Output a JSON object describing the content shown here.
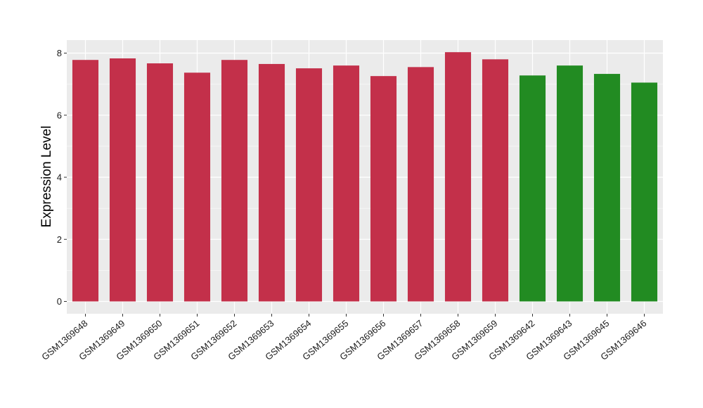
{
  "chart_data": {
    "type": "bar",
    "title": "",
    "xlabel": "",
    "ylabel": "Expression Level",
    "ylim": [
      0,
      8.4
    ],
    "yticks": [
      0,
      2,
      4,
      6,
      8
    ],
    "grid": true,
    "legend": "none",
    "categories": [
      "GSM1369648",
      "GSM1369649",
      "GSM1369650",
      "GSM1369651",
      "GSM1369652",
      "GSM1369653",
      "GSM1369654",
      "GSM1369655",
      "GSM1369656",
      "GSM1369657",
      "GSM1369658",
      "GSM1369659",
      "GSM1369642",
      "GSM1369643",
      "GSM1369645",
      "GSM1369646"
    ],
    "values": [
      7.78,
      7.83,
      7.67,
      7.37,
      7.78,
      7.65,
      7.51,
      7.6,
      7.26,
      7.55,
      8.03,
      7.8,
      7.28,
      7.6,
      7.33,
      7.05
    ],
    "bar_colors": [
      "#c3304a",
      "#c3304a",
      "#c3304a",
      "#c3304a",
      "#c3304a",
      "#c3304a",
      "#c3304a",
      "#c3304a",
      "#c3304a",
      "#c3304a",
      "#c3304a",
      "#c3304a",
      "#228b22",
      "#228b22",
      "#228b22",
      "#228b22"
    ],
    "panel_background": "#ebebeb",
    "gridline_color": "#ffffff"
  }
}
